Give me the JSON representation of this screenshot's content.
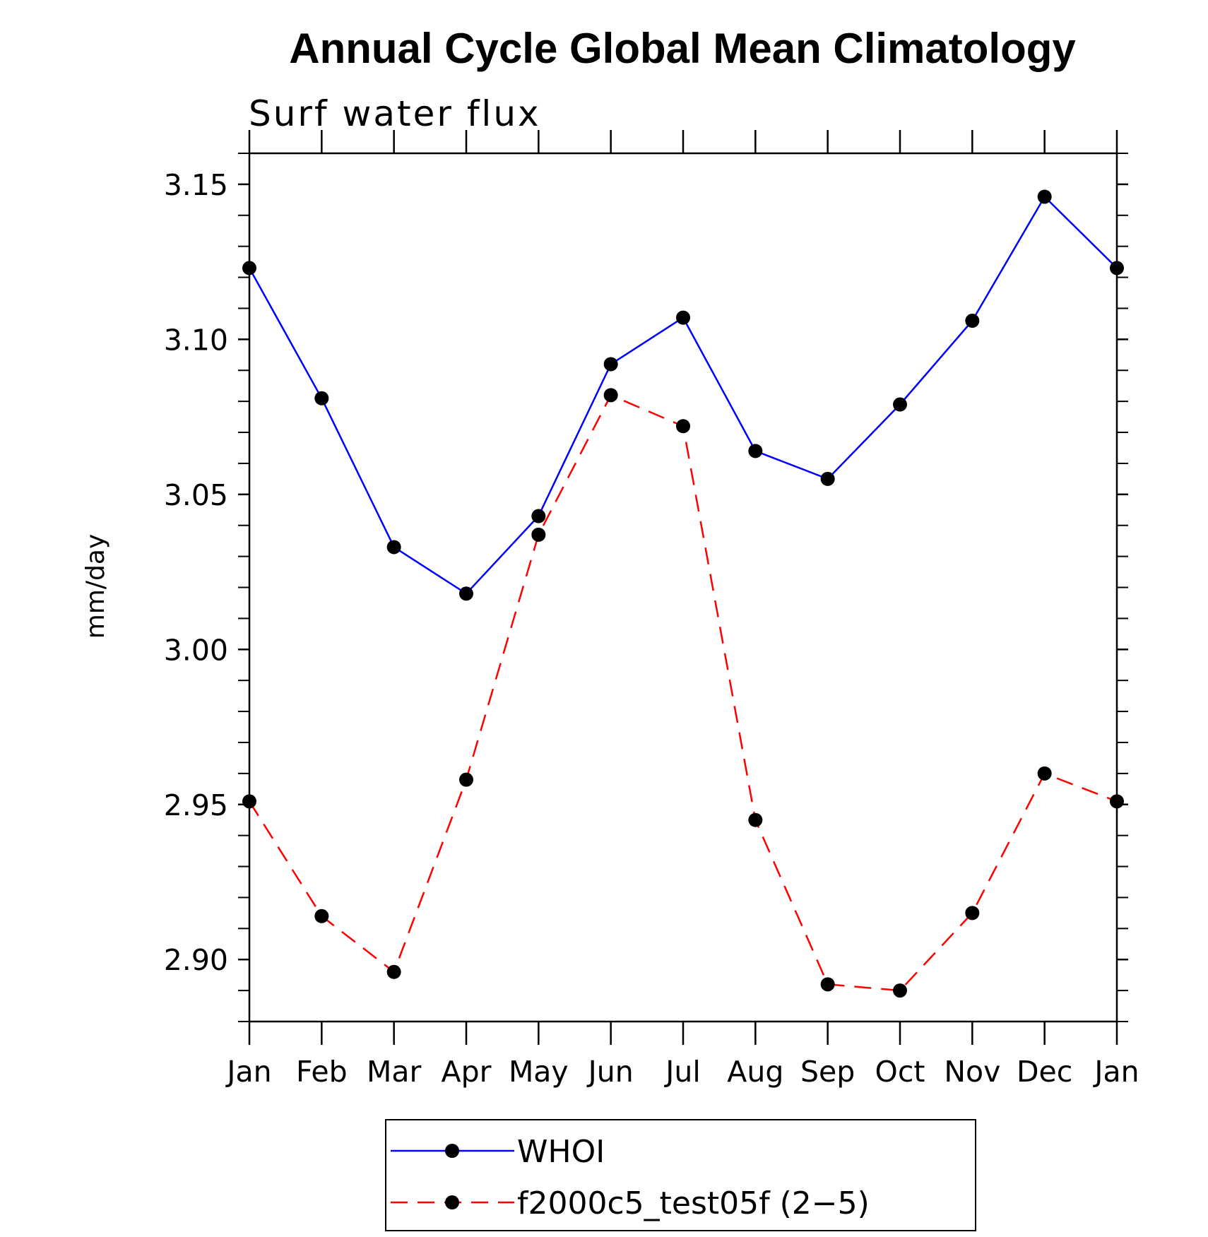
{
  "chart_data": {
    "type": "line",
    "title": "Annual Cycle Global Mean Climatology",
    "subtitle": "Surf water flux",
    "xlabel": "",
    "ylabel": "mm/day",
    "categories": [
      "Jan",
      "Feb",
      "Mar",
      "Apr",
      "May",
      "Jun",
      "Jul",
      "Aug",
      "Sep",
      "Oct",
      "Nov",
      "Dec",
      "Jan"
    ],
    "ylim": [
      2.88,
      3.16
    ],
    "yticks": [
      2.9,
      2.95,
      3.0,
      3.05,
      3.1,
      3.15
    ],
    "ytick_labels": [
      "2.90",
      "2.95",
      "3.00",
      "3.05",
      "3.10",
      "3.15"
    ],
    "grid": false,
    "legend_position": "bottom-center",
    "series": [
      {
        "name": "WHOI",
        "color": "#0000ff",
        "line_style": "solid",
        "marker": "filled-circle",
        "values": [
          3.123,
          3.081,
          3.033,
          3.018,
          3.043,
          3.092,
          3.107,
          3.064,
          3.055,
          3.079,
          3.106,
          3.146,
          3.123
        ]
      },
      {
        "name": "f2000c5_test05f (2−5)",
        "color": "#ff0000",
        "line_style": "dashed",
        "marker": "filled-circle",
        "values": [
          2.951,
          2.914,
          2.896,
          2.958,
          3.037,
          3.082,
          3.072,
          2.945,
          2.892,
          2.89,
          2.915,
          2.96,
          2.951
        ]
      }
    ]
  }
}
